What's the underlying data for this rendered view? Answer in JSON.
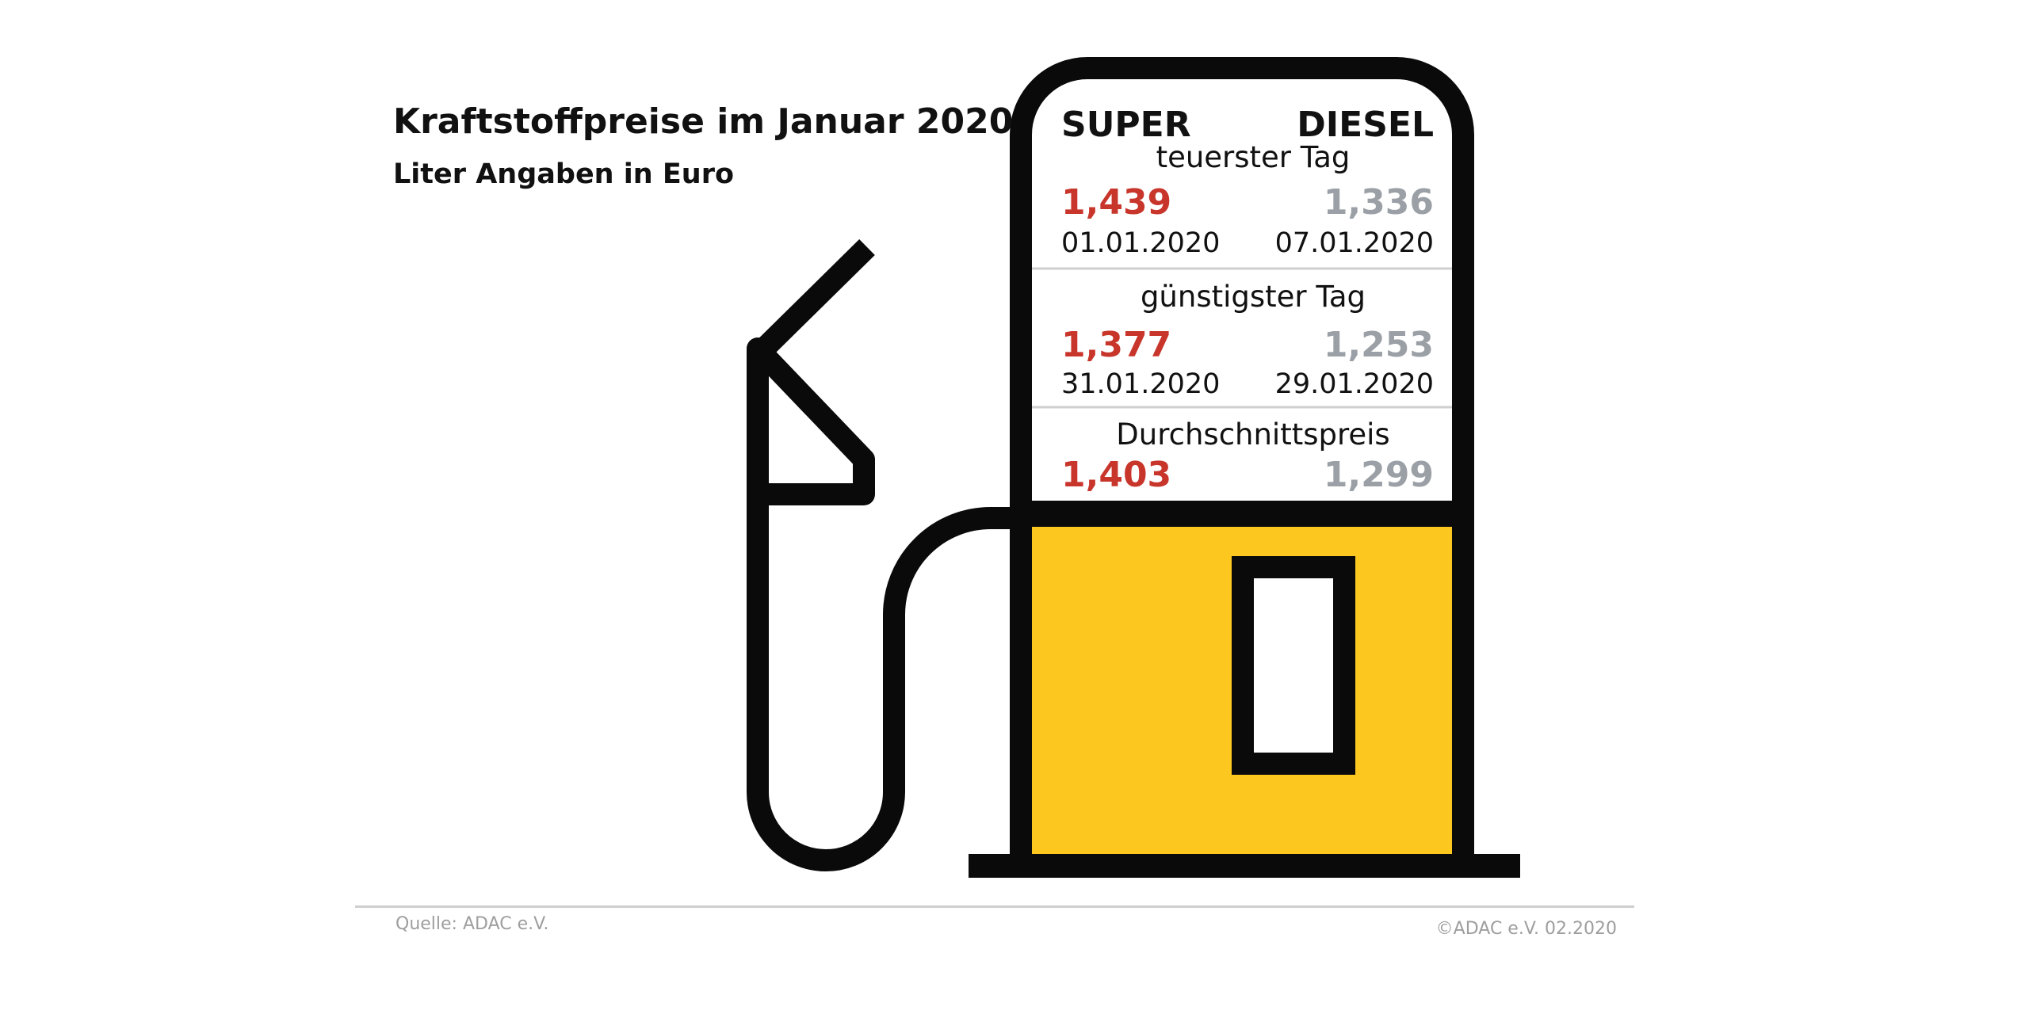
{
  "title": "Kraftstoffpreise im Januar 2020",
  "subtitle": "Liter Angaben in Euro",
  "columns": {
    "super": "SUPER",
    "diesel": "DIESEL"
  },
  "sections": [
    {
      "label": "teuerster Tag",
      "super_price": "1,439",
      "super_date": "01.01.2020",
      "diesel_price": "1,336",
      "diesel_date": "07.01.2020"
    },
    {
      "label": "günstigster Tag",
      "super_price": "1,377",
      "super_date": "31.01.2020",
      "diesel_price": "1,253",
      "diesel_date": "29.01.2020"
    },
    {
      "label": "Durchschnittspreis",
      "super_price": "1,403",
      "diesel_price": "1,299"
    }
  ],
  "footer": {
    "source": "Quelle: ADAC e.V.",
    "copyright": "©ADAC e.V.  02.2020"
  },
  "colors": {
    "super": "#c8352b",
    "diesel": "#9aa0a6",
    "pump_body": "#fcc820",
    "outline": "#0a0a0a"
  },
  "icons": {
    "pump": "fuel-pump-icon",
    "nozzle": "fuel-nozzle-icon"
  }
}
